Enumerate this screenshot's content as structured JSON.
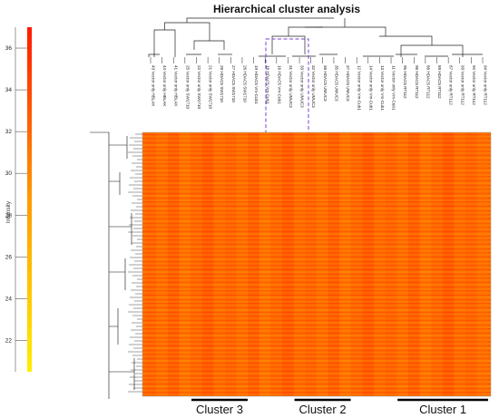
{
  "chart_data": {
    "type": "heatmap",
    "title": "Hierarchical cluster analysis",
    "colorbar": {
      "label": "Intensity",
      "ticks": [
        22,
        24,
        26,
        28,
        30,
        32,
        34,
        36
      ],
      "range": [
        20.5,
        37
      ],
      "colors": [
        "#ffee00",
        "#ff9a00",
        "#ff1a00"
      ]
    },
    "columns": [
      "43 Vector only HBLAK",
      "44 Vector only HBLAK",
      "41 Vector only HBLAK",
      "25 Vector only SW1710",
      "22 Vector only SW1710",
      "21 Vector only SW1710",
      "28 HDAC5 SW1710",
      "27 HDAC5 SW1710",
      "26 HDAC5 SW1710",
      "19 HDAC5 Vm-Cub1",
      "18 HDAC5 Vm-Cub1",
      "16 HDAC5 Vm-Cub1",
      "31 Vector only UMUC3",
      "33 Vector only UMUC3",
      "32 Vector only UMUC3",
      "36 HDAC5 UMUC3",
      "35 HDAC5 UMUC3",
      "37 HDAC5 UMUC3",
      "12 Vector only Vm-Cub1",
      "14 Vector only Vm-Cub1",
      "13 Vector only Vm-Cub1",
      "11 Vector only Vm-Cub1",
      "95 HDAC5 RT112",
      "96 HDAC5 RT112",
      "88 HDAC5 RT112",
      "89 HDAC5 RT112",
      "87 Vector only RT112",
      "93 Vector only RT112",
      "92 Vector only RT112",
      "94 Vector only RT112"
    ],
    "highlighted_columns": [
      "19 HDAC5 Vm-Cub1",
      "18 HDAC5 Vm-Cub1",
      "16 HDAC5 Vm-Cub1"
    ],
    "clusters": [
      {
        "name": "Cluster 3",
        "first_column": 0,
        "last_column": 8
      },
      {
        "name": "Cluster 2",
        "first_column": 9,
        "last_column": 17
      },
      {
        "name": "Cluster 1",
        "first_column": 18,
        "last_column": 29
      }
    ]
  }
}
